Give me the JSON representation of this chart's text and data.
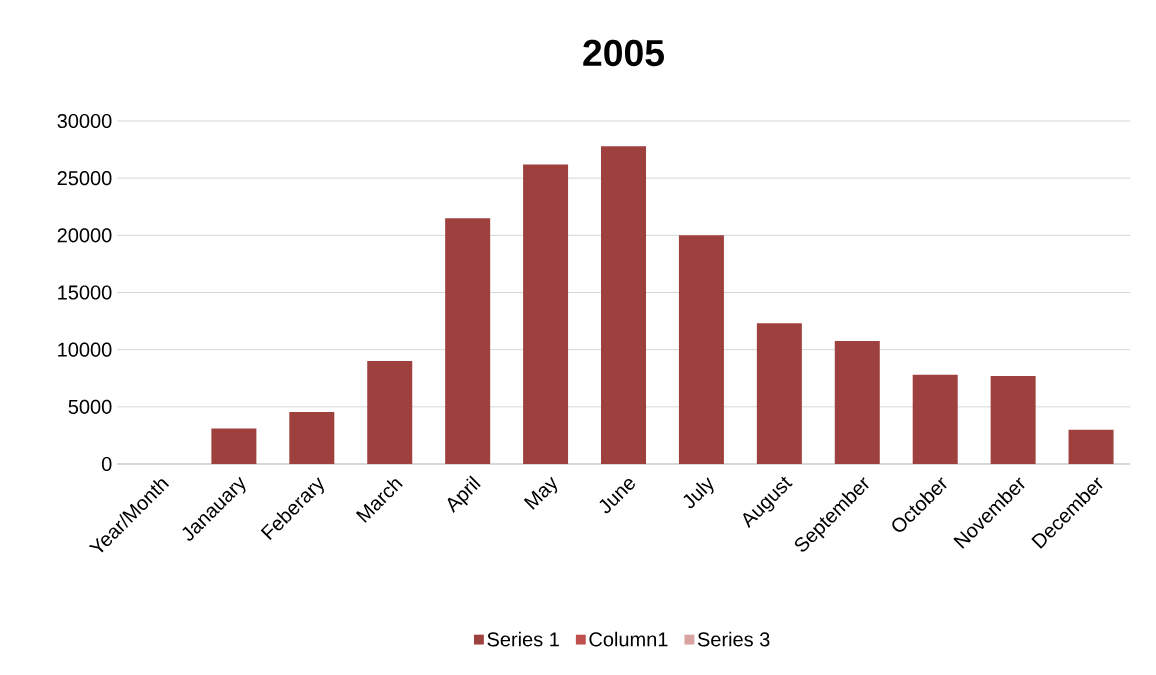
{
  "chart_data": {
    "type": "bar",
    "title": "2005",
    "categories": [
      "Year/Month",
      "Janauary",
      "Feberary",
      "March",
      "April",
      "May",
      "June",
      "July",
      "August",
      "September",
      "October",
      "November",
      "December"
    ],
    "series": [
      {
        "name": "Series 1",
        "color": "#9e413e",
        "values": [
          null,
          3100,
          4550,
          9000,
          21500,
          26200,
          27800,
          20000,
          12300,
          10750,
          7800,
          7700,
          3000
        ]
      },
      {
        "name": "Column1",
        "color": "#c0504d",
        "values": [
          null,
          null,
          null,
          null,
          null,
          null,
          null,
          null,
          null,
          null,
          null,
          null,
          null
        ]
      },
      {
        "name": "Series 3",
        "color": "#d9a3a1",
        "values": [
          null,
          null,
          null,
          null,
          null,
          null,
          null,
          null,
          null,
          null,
          null,
          null,
          null
        ]
      }
    ],
    "ylim": [
      0,
      30000
    ],
    "yticks": [
      0,
      5000,
      10000,
      15000,
      20000,
      25000,
      30000
    ],
    "grid": "y",
    "legend": "bottom"
  }
}
